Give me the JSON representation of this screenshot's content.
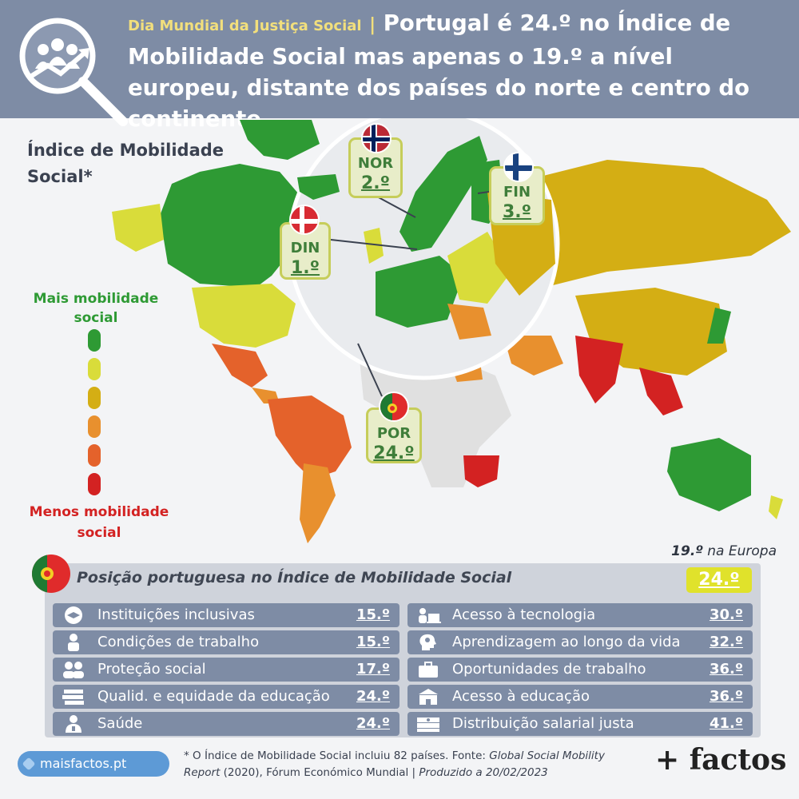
{
  "header": {
    "kicker": "Dia Mundial da Justiça Social",
    "separator": "|",
    "headline": "Portugal é 24.º no Índice de Mobilidade Social mas apenas o 19.º a nível europeu, distante dos países do norte e centro do continente"
  },
  "legend": {
    "title": "Índice de Mobilidade Social*",
    "top_label": "Mais mobilidade social",
    "bottom_label": "Menos mobilidade social",
    "colors": [
      "#2e9a34",
      "#d9dc3a",
      "#d4ae14",
      "#e8902e",
      "#e4622b",
      "#d32222"
    ]
  },
  "callouts": {
    "din": {
      "code": "DIN",
      "rank": "1.º"
    },
    "nor": {
      "code": "NOR",
      "rank": "2.º"
    },
    "fin": {
      "code": "FIN",
      "rank": "3.º"
    },
    "por": {
      "code": "POR",
      "rank": "24.º"
    }
  },
  "table": {
    "europe_rank": "19.º",
    "europe_text": "na Europa",
    "heading": "Posição portuguesa no Índice de Mobilidade Social",
    "overall": "24.º",
    "left": [
      {
        "label": "Instituições inclusivas",
        "value": "15.º",
        "icon": "handshake-icon"
      },
      {
        "label": "Condições de trabalho",
        "value": "15.º",
        "icon": "worker-icon"
      },
      {
        "label": "Proteção social",
        "value": "17.º",
        "icon": "people-icon"
      },
      {
        "label": "Qualid. e equidade da educação",
        "value": "24.º",
        "icon": "books-icon"
      },
      {
        "label": "Saúde",
        "value": "24.º",
        "icon": "doctor-icon"
      }
    ],
    "right": [
      {
        "label": "Acesso à tecnologia",
        "value": "30.º",
        "icon": "laptop-user-icon"
      },
      {
        "label": "Aprendizagem ao longo da vida",
        "value": "32.º",
        "icon": "head-lightbulb-icon"
      },
      {
        "label": "Oportunidades de trabalho",
        "value": "36.º",
        "icon": "briefcase-icon"
      },
      {
        "label": "Acesso à educação",
        "value": "36.º",
        "icon": "school-icon"
      },
      {
        "label": "Distribuição salarial justa",
        "value": "41.º",
        "icon": "money-icon"
      }
    ]
  },
  "footer": {
    "site": "maisfactos.pt",
    "note_prefix": "* O Índice de Mobilidade Social incluiu 82 países. Fonte: ",
    "note_source": "Global Social Mobility Report",
    "note_mid": " (2020), Fórum Económico Mundial | ",
    "note_produced": "Produzido a 20/02/2023",
    "brand": "+ factos"
  },
  "chart_data": {
    "type": "table",
    "title": "Posição portuguesa no Índice de Mobilidade Social",
    "overall_rank": 24,
    "europe_rank": 19,
    "pillars": [
      {
        "name": "Instituições inclusivas",
        "rank": 15
      },
      {
        "name": "Condições de trabalho",
        "rank": 15
      },
      {
        "name": "Proteção social",
        "rank": 17
      },
      {
        "name": "Qualid. e equidade da educação",
        "rank": 24
      },
      {
        "name": "Saúde",
        "rank": 24
      },
      {
        "name": "Acesso à tecnologia",
        "rank": 30
      },
      {
        "name": "Aprendizagem ao longo da vida",
        "rank": 32
      },
      {
        "name": "Oportunidades de trabalho",
        "rank": 36
      },
      {
        "name": "Acesso à educação",
        "rank": 36
      },
      {
        "name": "Distribuição salarial justa",
        "rank": 41
      }
    ],
    "highlighted_countries": [
      {
        "name": "DIN",
        "rank": 1
      },
      {
        "name": "NOR",
        "rank": 2
      },
      {
        "name": "FIN",
        "rank": 3
      },
      {
        "name": "POR",
        "rank": 24
      }
    ]
  }
}
